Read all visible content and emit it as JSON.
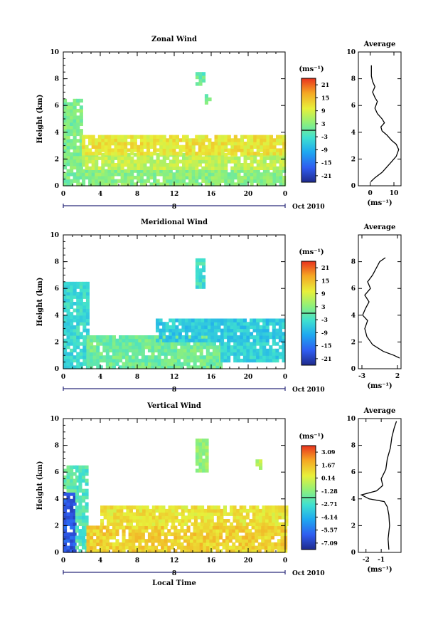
{
  "chart_data": [
    {
      "type": "heatmap",
      "title": "Zonal Wind",
      "ylabel": "Height (km)",
      "xlim": [
        0,
        24
      ],
      "ylim": [
        0,
        10
      ],
      "x_ticks": [
        "0",
        "4",
        "8",
        "12",
        "16",
        "20",
        "0"
      ],
      "y_ticks": [
        "0",
        "2",
        "4",
        "6",
        "8",
        "10"
      ],
      "date_label": "Oct 2010",
      "day_label": "8",
      "colorbar": {
        "unit": "(ms⁻¹)",
        "labels": [
          "21",
          "15",
          "9",
          "3",
          "-3",
          "-9",
          "-15",
          "-21"
        ],
        "min": -24,
        "max": 24
      },
      "regions": [
        {
          "x": [
            0.0,
            2.0
          ],
          "y": [
            0.0,
            6.5
          ],
          "value": 2
        },
        {
          "x": [
            2.0,
            24.0
          ],
          "y": [
            0.0,
            1.2
          ],
          "value": 3
        },
        {
          "x": [
            2.0,
            24.0
          ],
          "y": [
            1.2,
            2.3
          ],
          "value": 7
        },
        {
          "x": [
            2.0,
            24.0
          ],
          "y": [
            2.3,
            3.6
          ],
          "value": 11
        },
        {
          "x": [
            14.3,
            15.2
          ],
          "y": [
            7.5,
            8.5
          ],
          "value": 0
        },
        {
          "x": [
            15.3,
            15.8
          ],
          "y": [
            6.1,
            6.7
          ],
          "value": 1
        }
      ],
      "average_profile": {
        "title": "Average",
        "xlabel": "(ms⁻¹)",
        "x_ticks": [
          "0",
          "10"
        ],
        "y_ticks": [
          "0",
          "2",
          "4",
          "6",
          "8",
          "10"
        ],
        "xlim": [
          -5,
          13
        ],
        "ylim": [
          0,
          10
        ],
        "x": [
          0.2,
          2,
          5,
          7,
          9,
          11,
          12,
          11,
          9,
          7,
          5,
          4.5,
          6,
          5,
          3,
          2,
          3,
          2,
          1,
          2,
          1,
          0.5,
          0.5
        ],
        "y": [
          0.3,
          0.6,
          1.0,
          1.4,
          1.8,
          2.2,
          2.7,
          3.1,
          3.4,
          3.8,
          4.1,
          4.4,
          4.7,
          5.0,
          5.4,
          5.8,
          6.3,
          6.6,
          7.0,
          7.4,
          7.8,
          8.2,
          9.0
        ]
      }
    },
    {
      "type": "heatmap",
      "title": "Meridional Wind",
      "ylabel": "Height (km)",
      "xlim": [
        0,
        24
      ],
      "ylim": [
        0,
        10
      ],
      "x_ticks": [
        "0",
        "4",
        "8",
        "12",
        "16",
        "20",
        "0"
      ],
      "y_ticks": [
        "0",
        "2",
        "4",
        "6",
        "8",
        "10"
      ],
      "date_label": "Oct 2010",
      "day_label": "8",
      "colorbar": {
        "unit": "(ms⁻¹)",
        "labels": [
          "21",
          "15",
          "9",
          "3",
          "-3",
          "-9",
          "-15",
          "-21"
        ],
        "min": -24,
        "max": 24
      },
      "regions": [
        {
          "x": [
            0.0,
            2.5
          ],
          "y": [
            0.0,
            6.5
          ],
          "value": -4
        },
        {
          "x": [
            2.5,
            17.0
          ],
          "y": [
            0.0,
            2.5
          ],
          "value": 1
        },
        {
          "x": [
            17.0,
            24.0
          ],
          "y": [
            0.5,
            2.0
          ],
          "value": -5
        },
        {
          "x": [
            10.0,
            24.0
          ],
          "y": [
            2.0,
            3.6
          ],
          "value": -6
        },
        {
          "x": [
            14.3,
            15.3
          ],
          "y": [
            6.0,
            8.2
          ],
          "value": -3
        }
      ],
      "average_profile": {
        "title": "Average",
        "xlabel": "(ms⁻¹)",
        "x_ticks": [
          "-3",
          "2"
        ],
        "y_ticks": [
          "0",
          "2",
          "4",
          "6",
          "8"
        ],
        "xlim": [
          -3.5,
          2.5
        ],
        "ylim": [
          0,
          10
        ],
        "x": [
          2.3,
          1.5,
          0,
          -1.5,
          -2.3,
          -2.6,
          -2.2,
          -2.9,
          -2.5,
          -2.0,
          -2.6,
          -1.8,
          -2.2,
          -1.5,
          -1.0,
          -0.5,
          0.3
        ],
        "y": [
          0.8,
          1.0,
          1.3,
          1.8,
          2.4,
          3.0,
          3.6,
          4.0,
          4.5,
          5.0,
          5.5,
          6.0,
          6.5,
          7.0,
          7.5,
          8.0,
          8.3
        ]
      }
    },
    {
      "type": "heatmap",
      "title": "Vertical Wind",
      "ylabel": "Height (km)",
      "xlabel": "Local Time",
      "xlim": [
        0,
        24
      ],
      "ylim": [
        0,
        10
      ],
      "x_ticks": [
        "0",
        "4",
        "8",
        "12",
        "16",
        "20",
        "0"
      ],
      "y_ticks": [
        "0",
        "2",
        "4",
        "6",
        "8",
        "10"
      ],
      "date_label": "Oct 2010",
      "day_label": "8",
      "colorbar": {
        "unit": "(ms⁻¹)",
        "labels": [
          "3.09",
          "1.67",
          "0.14",
          "-1.28",
          "-2.71",
          "-4.14",
          "-5.57",
          "-7.09"
        ],
        "min": -8,
        "max": 4
      },
      "regions": [
        {
          "x": [
            0.0,
            1.3
          ],
          "y": [
            0.0,
            4.5
          ],
          "value": -6.5
        },
        {
          "x": [
            1.3,
            2.5
          ],
          "y": [
            0.0,
            6.5
          ],
          "value": -2.5
        },
        {
          "x": [
            0.0,
            1.3
          ],
          "y": [
            4.5,
            6.5
          ],
          "value": -2.0
        },
        {
          "x": [
            2.5,
            24.0
          ],
          "y": [
            0.0,
            2.0
          ],
          "value": 1.3
        },
        {
          "x": [
            4.0,
            24.0
          ],
          "y": [
            2.0,
            3.4
          ],
          "value": 0.8
        },
        {
          "x": [
            14.3,
            15.6
          ],
          "y": [
            6.0,
            8.5
          ],
          "value": -1.0
        },
        {
          "x": [
            20.8,
            21.5
          ],
          "y": [
            6.2,
            6.8
          ],
          "value": -0.5
        }
      ],
      "average_profile": {
        "title": "Average",
        "xlabel": "(ms⁻¹)",
        "x_ticks": [
          "-2",
          "-1"
        ],
        "y_ticks": [
          "0",
          "2",
          "4",
          "6",
          "8",
          "10"
        ],
        "xlim": [
          -2.5,
          0.3
        ],
        "ylim": [
          0,
          10
        ],
        "x": [
          -0.5,
          -0.55,
          -0.45,
          -0.5,
          -0.6,
          -0.8,
          -1.8,
          -2.3,
          -1.3,
          -0.9,
          -1.0,
          -0.7,
          -0.6,
          -0.4,
          -0.3,
          -0.15,
          0.0
        ],
        "y": [
          0.2,
          1.0,
          2.0,
          2.8,
          3.4,
          3.8,
          4.0,
          4.3,
          4.6,
          5.0,
          5.5,
          6.2,
          7.0,
          7.8,
          8.6,
          9.3,
          9.8
        ]
      }
    }
  ]
}
